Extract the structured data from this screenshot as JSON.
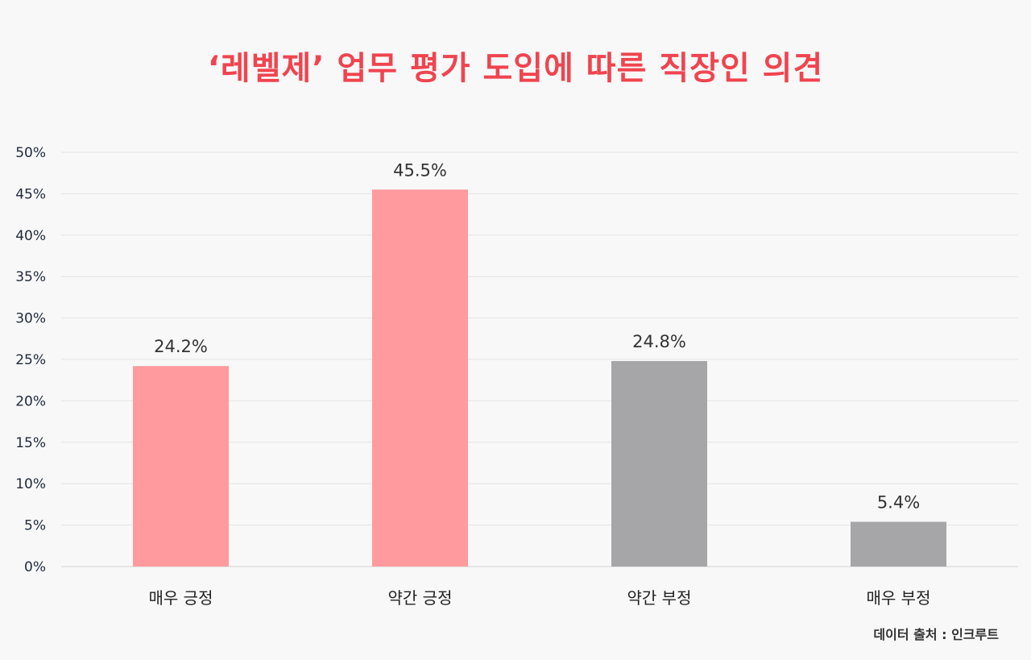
{
  "colors": {
    "title": "#f0444f",
    "positive_bar": "#ff9a9e",
    "negative_bar": "#a6a6a8",
    "grid": "#e3e3e3",
    "tick_text": "#1f2a3c",
    "label_text": "#333333"
  },
  "source": "데이터 출처 : 인크루트",
  "chart_data": {
    "type": "bar",
    "title": "‘레벨제’ 업무 평가 도입에 따른 직장인 의견",
    "xlabel": "",
    "ylabel": "",
    "ylim": [
      0,
      50
    ],
    "yticks": [
      "0%",
      "5%",
      "10%",
      "15%",
      "20%",
      "25%",
      "30%",
      "35%",
      "40%",
      "45%",
      "50%"
    ],
    "grid": true,
    "categories": [
      "매우 긍정",
      "약간 긍정",
      "약간 부정",
      "매우 부정"
    ],
    "values": [
      24.2,
      45.5,
      24.8,
      5.4
    ],
    "value_labels": [
      "24.2%",
      "45.5%",
      "24.8%",
      "5.4%"
    ],
    "bar_colors": [
      "#ff9a9e",
      "#ff9a9e",
      "#a6a6a8",
      "#a6a6a8"
    ]
  }
}
